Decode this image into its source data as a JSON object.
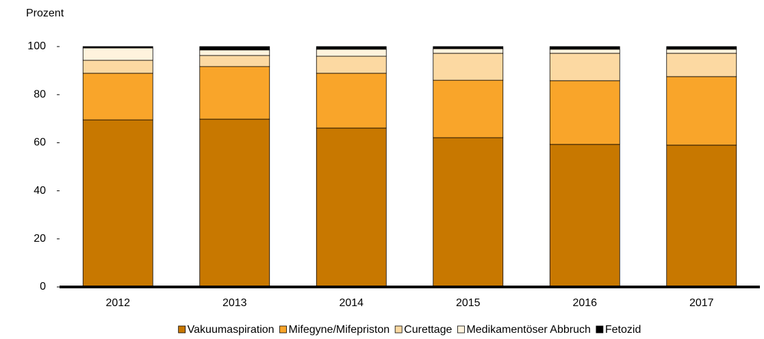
{
  "chart_data": {
    "type": "stacked-bar",
    "y_label": "Prozent",
    "categories": [
      "2012",
      "2013",
      "2014",
      "2015",
      "2016",
      "2017"
    ],
    "series": [
      {
        "name": "Vakuumaspiration",
        "color": "#c87800",
        "values": [
          69.5,
          69.8,
          66.1,
          62.1,
          59.3,
          59.0
        ]
      },
      {
        "name": "Mifegyne/Mifepriston",
        "color": "#f9a52a",
        "values": [
          19.4,
          21.9,
          22.8,
          23.9,
          26.5,
          28.5
        ]
      },
      {
        "name": "Curettage",
        "color": "#fcd9a2",
        "values": [
          5.4,
          4.6,
          7.1,
          11.2,
          11.4,
          9.7
        ]
      },
      {
        "name": "Medikamentöser Abbruch",
        "color": "#fff3dd",
        "values": [
          5.1,
          2.3,
          2.9,
          1.9,
          1.7,
          1.7
        ]
      },
      {
        "name": "Fetozid",
        "color": "#000000",
        "values": [
          0.6,
          1.4,
          1.1,
          0.9,
          1.1,
          1.1
        ]
      }
    ],
    "ylim": [
      0,
      100
    ],
    "yticks": [
      0,
      20,
      40,
      60,
      80,
      100
    ],
    "grid": false,
    "legend": "bottom"
  }
}
